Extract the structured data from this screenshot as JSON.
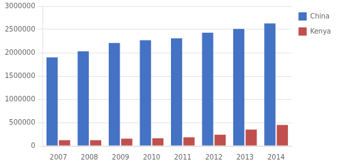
{
  "chart_data": {
    "type": "bar",
    "categories": [
      "2007",
      "2008",
      "2009",
      "2010",
      "2011",
      "2012",
      "2013",
      "2014"
    ],
    "series": [
      {
        "name": "China",
        "color": "#4472C4",
        "values": [
          1900000,
          2030000,
          2210000,
          2270000,
          2310000,
          2430000,
          2510000,
          2630000
        ]
      },
      {
        "name": "Kenya",
        "color": "#C0504D",
        "values": [
          120000,
          120000,
          155000,
          160000,
          185000,
          240000,
          350000,
          450000
        ]
      }
    ],
    "ylim": [
      0,
      3000000
    ],
    "yticks": [
      0,
      500000,
      1000000,
      1500000,
      2000000,
      2500000,
      3000000
    ],
    "grid": true,
    "legend": "right"
  }
}
